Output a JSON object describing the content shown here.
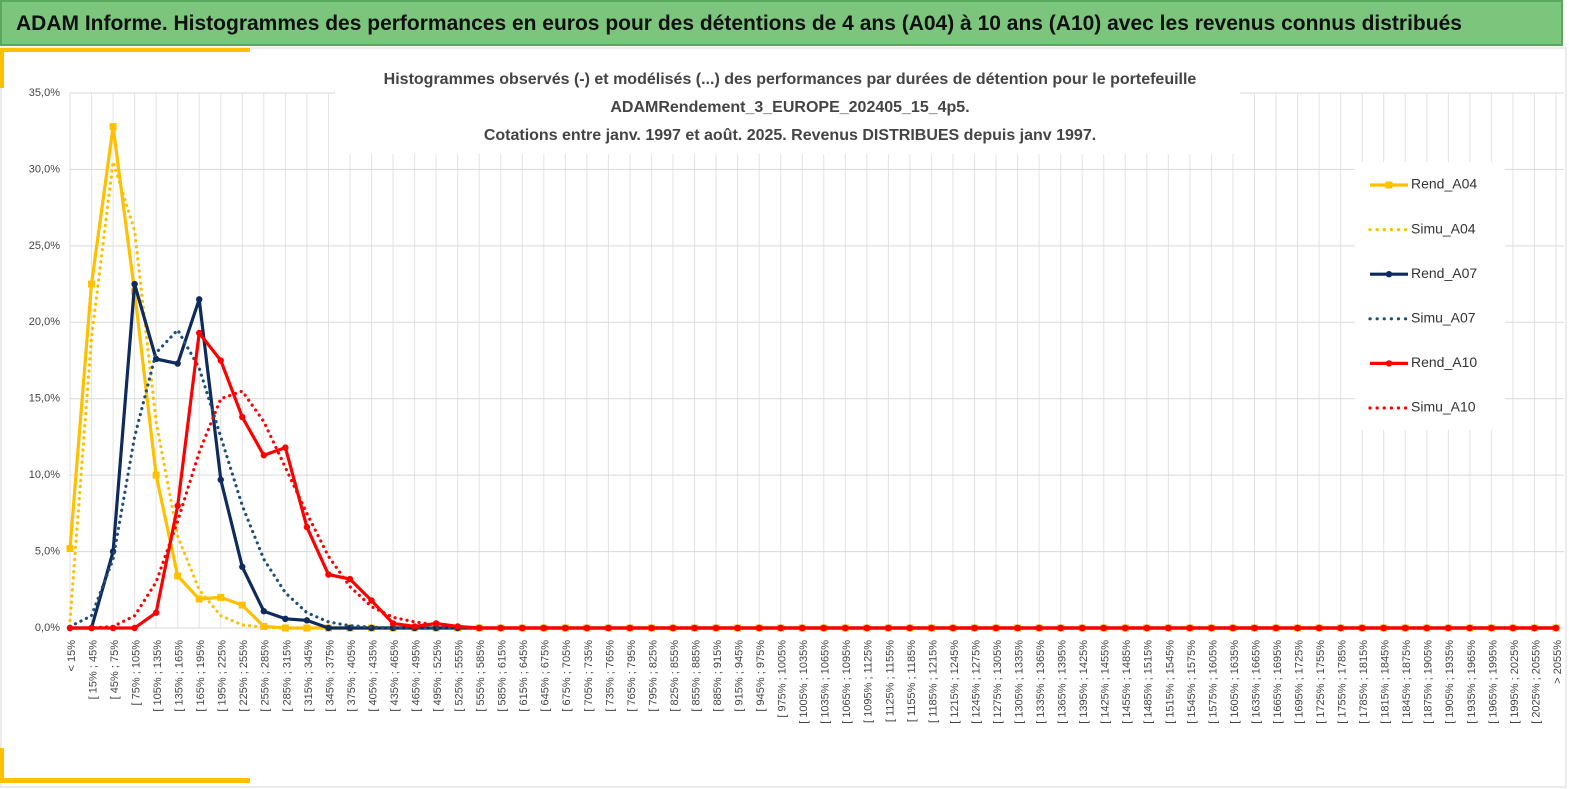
{
  "header_title": "ADAM Informe. Histogrammes des performances en euros pour des détentions de 4 ans (A04) à 10 ans (A10) avec les revenus connus distribués",
  "chart_data": {
    "type": "line",
    "title": [
      "Histogrammes observés (-) et modélisés (...) des performances par durées de détention pour le portefeuille",
      "ADAMRendement_3_EUROPE_202405_15_4p5.",
      "Cotations entre janv. 1997 et août. 2025. Revenus DISTRIBUES depuis janv 1997."
    ],
    "categories": [
      "< 15%",
      "[ 15% ; 45%",
      "[ 45% ; 75%",
      "[ 75% ; 105%",
      "[ 105% ; 135%",
      "[ 135% ; 165%",
      "[ 165% ; 195%",
      "[ 195% ; 225%",
      "[ 225% ; 255%",
      "[ 255% ; 285%",
      "[ 285% ; 315%",
      "[ 315% ; 345%",
      "[ 345% ; 375%",
      "[ 375% ; 405%",
      "[ 405% ; 435%",
      "[ 435% ; 465%",
      "[ 465% ; 495%",
      "[ 495% ; 525%",
      "[ 525% ; 555%",
      "[ 555% ; 585%",
      "[ 585% ; 615%",
      "[ 615% ; 645%",
      "[ 645% ; 675%",
      "[ 675% ; 705%",
      "[ 705% ; 735%",
      "[ 735% ; 765%",
      "[ 765% ; 795%",
      "[ 795% ; 825%",
      "[ 825% ; 855%",
      "[ 855% ; 885%",
      "[ 885% ; 915%",
      "[ 915% ; 945%",
      "[ 945% ; 975%",
      "[ 975% ; 1005%",
      "[ 1005% ; 1035%",
      "[ 1035% ; 1065%",
      "[ 1065% ; 1095%",
      "[ 1095% ; 1125%",
      "[ 1125% ; 1155%",
      "[ 1155% ; 1185%",
      "[ 1185% ; 1215%",
      "[ 1215% ; 1245%",
      "[ 1245% ; 1275%",
      "[ 1275% ; 1305%",
      "[ 1305% ; 1335%",
      "[ 1335% ; 1365%",
      "[ 1365% ; 1395%",
      "[ 1395% ; 1425%",
      "[ 1425% ; 1455%",
      "[ 1455% ; 1485%",
      "[ 1485% ; 1515%",
      "[ 1515% ; 1545%",
      "[ 1545% ; 1575%",
      "[ 1575% ; 1605%",
      "[ 1605% ; 1635%",
      "[ 1635% ; 1665%",
      "[ 1665% ; 1695%",
      "[ 1695% ; 1725%",
      "[ 1725% ; 1755%",
      "[ 1755% ; 1785%",
      "[ 1785% ; 1815%",
      "[ 1815% ; 1845%",
      "[ 1845% ; 1875%",
      "[ 1875% ; 1905%",
      "[ 1905% ; 1935%",
      "[ 1935% ; 1965%",
      "[ 1965% ; 1995%",
      "[ 1995% ; 2025%",
      "[ 2025% ; 2055%",
      "> 2055%"
    ],
    "series": [
      {
        "name": "Rend_A04",
        "color": "#ffc000",
        "style": "solid",
        "marker": "square",
        "values": [
          5.2,
          22.5,
          32.8,
          22.0,
          10.0,
          3.4,
          1.9,
          2.0,
          1.5,
          0.1,
          0,
          0,
          0,
          0,
          0,
          0,
          0,
          0,
          0,
          0,
          0,
          0,
          0,
          0,
          0,
          0,
          0,
          0,
          0,
          0,
          0,
          0,
          0,
          0,
          0,
          0,
          0,
          0,
          0,
          0,
          0,
          0,
          0,
          0,
          0,
          0,
          0,
          0,
          0,
          0,
          0,
          0,
          0,
          0,
          0,
          0,
          0,
          0,
          0,
          0,
          0,
          0,
          0,
          0,
          0,
          0,
          0,
          0,
          0,
          0
        ]
      },
      {
        "name": "Simu_A04",
        "color": "#ffc000",
        "style": "dotted",
        "values": [
          0.5,
          19,
          30.5,
          26,
          13.5,
          6,
          2.5,
          0.8,
          0.2,
          0.05,
          0,
          0,
          0,
          0,
          0,
          0,
          0,
          0,
          0,
          0,
          0,
          0,
          0,
          0,
          0,
          0,
          0,
          0,
          0,
          0,
          0,
          0,
          0,
          0,
          0,
          0,
          0,
          0,
          0,
          0,
          0,
          0,
          0,
          0,
          0,
          0,
          0,
          0,
          0,
          0,
          0,
          0,
          0,
          0,
          0,
          0,
          0,
          0,
          0,
          0,
          0,
          0,
          0,
          0,
          0,
          0,
          0,
          0,
          0,
          0
        ]
      },
      {
        "name": "Rend_A07",
        "color": "#0f2a5c",
        "style": "solid",
        "marker": "circle",
        "values": [
          0,
          0,
          5.0,
          22.5,
          17.6,
          17.3,
          21.5,
          9.7,
          4.0,
          1.1,
          0.6,
          0.5,
          0,
          0,
          0,
          0,
          0,
          0,
          0,
          0,
          0,
          0,
          0,
          0,
          0,
          0,
          0,
          0,
          0,
          0,
          0,
          0,
          0,
          0,
          0,
          0,
          0,
          0,
          0,
          0,
          0,
          0,
          0,
          0,
          0,
          0,
          0,
          0,
          0,
          0,
          0,
          0,
          0,
          0,
          0,
          0,
          0,
          0,
          0,
          0,
          0,
          0,
          0,
          0,
          0,
          0,
          0,
          0,
          0,
          0
        ]
      },
      {
        "name": "Simu_A07",
        "color": "#1f4e79",
        "style": "dotted",
        "values": [
          0.1,
          0.8,
          4.5,
          12.5,
          18,
          19.5,
          17,
          12.5,
          8,
          4.5,
          2.3,
          1.0,
          0.4,
          0.15,
          0.05,
          0,
          0,
          0,
          0,
          0,
          0,
          0,
          0,
          0,
          0,
          0,
          0,
          0,
          0,
          0,
          0,
          0,
          0,
          0,
          0,
          0,
          0,
          0,
          0,
          0,
          0,
          0,
          0,
          0,
          0,
          0,
          0,
          0,
          0,
          0,
          0,
          0,
          0,
          0,
          0,
          0,
          0,
          0,
          0,
          0,
          0,
          0,
          0,
          0,
          0,
          0,
          0,
          0,
          0,
          0
        ]
      },
      {
        "name": "Rend_A10",
        "color": "#ff0000",
        "style": "solid",
        "marker": "circle",
        "values": [
          0,
          0,
          0,
          0,
          1.0,
          8,
          19.3,
          17.5,
          13.8,
          11.3,
          11.8,
          6.6,
          3.5,
          3.2,
          1.8,
          0.3,
          0.1,
          0.3,
          0.1,
          0,
          0,
          0,
          0,
          0,
          0,
          0,
          0,
          0,
          0,
          0,
          0,
          0,
          0,
          0,
          0,
          0,
          0,
          0,
          0,
          0,
          0,
          0,
          0,
          0,
          0,
          0,
          0,
          0,
          0,
          0,
          0,
          0,
          0,
          0,
          0,
          0,
          0,
          0,
          0,
          0,
          0,
          0,
          0,
          0,
          0,
          0,
          0,
          0,
          0,
          0
        ]
      },
      {
        "name": "Simu_A10",
        "color": "#ff0000",
        "style": "dotted",
        "values": [
          0,
          0,
          0.1,
          0.8,
          3,
          7,
          11.5,
          15,
          15.5,
          13.5,
          10.5,
          7.5,
          4.7,
          2.7,
          1.4,
          0.7,
          0.4,
          0.2,
          0.1,
          0,
          0,
          0,
          0,
          0,
          0,
          0,
          0,
          0,
          0,
          0,
          0,
          0,
          0,
          0,
          0,
          0,
          0,
          0,
          0,
          0,
          0,
          0,
          0,
          0,
          0,
          0,
          0,
          0,
          0,
          0,
          0,
          0,
          0,
          0,
          0,
          0,
          0,
          0,
          0,
          0,
          0,
          0,
          0,
          0,
          0,
          0,
          0,
          0,
          0,
          0
        ]
      }
    ],
    "ylim": [
      0,
      35
    ],
    "yticks": [
      {
        "value": 0,
        "label": "0,0%"
      },
      {
        "value": 5,
        "label": "5,0%"
      },
      {
        "value": 10,
        "label": "10,0%"
      },
      {
        "value": 15,
        "label": "15,0%"
      },
      {
        "value": 20,
        "label": "20,0%"
      },
      {
        "value": 25,
        "label": "25,0%"
      },
      {
        "value": 30,
        "label": "30,0%"
      },
      {
        "value": 35,
        "label": "35,0%"
      }
    ],
    "grid": true,
    "legend": "right"
  }
}
